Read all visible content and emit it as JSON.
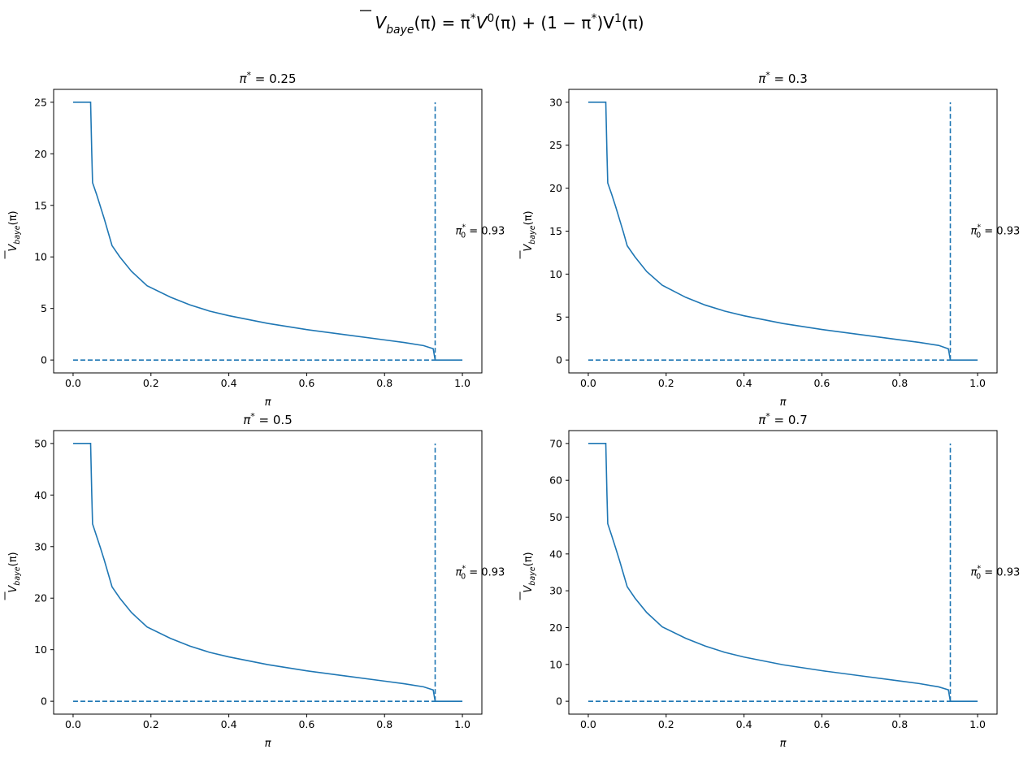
{
  "figure": {
    "suptitle": {
      "func": "V",
      "func_sub": "baye",
      "rest_1": "(π) = π",
      "sup_star_1": "*",
      "rest_2": "V",
      "sup_0": "0",
      "rest_3": "(π) + (1 − π",
      "sup_star_2": "*",
      "rest_4": ")V",
      "sup_1": "1",
      "rest_5": "(π)"
    },
    "ylabel": {
      "func": "V",
      "sub": "baye",
      "arg": "(π)"
    },
    "xlabel": "π",
    "annotation": {
      "sym": "π",
      "sub": "0",
      "sup": "*",
      "eq": " = ",
      "value": "0.93"
    }
  },
  "colors": {
    "line": "#1f77b4",
    "axes": "#000000",
    "background": "#ffffff"
  },
  "chart_data": [
    {
      "type": "line",
      "title": {
        "sym": "π",
        "sup": "*",
        "eq": " = 0.25"
      },
      "xlim": [
        -0.05,
        1.05
      ],
      "ylim": [
        -1.25,
        26.25
      ],
      "xticks": [
        0.0,
        0.2,
        0.4,
        0.6,
        0.8,
        1.0
      ],
      "xtick_labels": [
        "0.0",
        "0.2",
        "0.4",
        "0.6",
        "0.8",
        "1.0"
      ],
      "yticks": [
        0,
        5,
        10,
        15,
        20,
        25
      ],
      "ytick_labels": [
        "0",
        "5",
        "10",
        "15",
        "20",
        "25"
      ],
      "threshold_x": 0.93,
      "annotation_y": 12.5,
      "series": [
        {
          "style": "solid",
          "x": [
            0,
            0.045,
            0.048,
            0.05,
            0.06,
            0.07,
            0.08,
            0.09,
            0.1,
            0.12,
            0.15,
            0.19,
            0.25,
            0.3,
            0.35,
            0.4,
            0.5,
            0.6,
            0.7,
            0.8,
            0.85,
            0.9,
            0.925,
            0.93,
            1.0
          ],
          "y": [
            25,
            25,
            20,
            17.2,
            16.1,
            14.9,
            13.7,
            12.4,
            11.1,
            10.0,
            8.6,
            7.2,
            6.1,
            5.35,
            4.75,
            4.3,
            3.55,
            2.95,
            2.45,
            1.95,
            1.7,
            1.4,
            1.1,
            0,
            0
          ]
        },
        {
          "style": "dashed",
          "x": [
            0,
            0.93
          ],
          "y": [
            0,
            0
          ]
        },
        {
          "style": "dashed",
          "x": [
            0.93,
            0.93
          ],
          "y": [
            0,
            25
          ]
        }
      ]
    },
    {
      "type": "line",
      "title": {
        "sym": "π",
        "sup": "*",
        "eq": " = 0.3"
      },
      "xlim": [
        -0.05,
        1.05
      ],
      "ylim": [
        -1.5,
        31.5
      ],
      "xticks": [
        0.0,
        0.2,
        0.4,
        0.6,
        0.8,
        1.0
      ],
      "xtick_labels": [
        "0.0",
        "0.2",
        "0.4",
        "0.6",
        "0.8",
        "1.0"
      ],
      "yticks": [
        0,
        5,
        10,
        15,
        20,
        25,
        30
      ],
      "ytick_labels": [
        "0",
        "5",
        "10",
        "15",
        "20",
        "25",
        "30"
      ],
      "threshold_x": 0.93,
      "annotation_y": 15,
      "series": [
        {
          "style": "solid",
          "x": [
            0,
            0.045,
            0.048,
            0.05,
            0.06,
            0.07,
            0.08,
            0.09,
            0.1,
            0.12,
            0.15,
            0.19,
            0.25,
            0.3,
            0.35,
            0.4,
            0.5,
            0.6,
            0.7,
            0.8,
            0.85,
            0.9,
            0.925,
            0.93,
            1.0
          ],
          "y": [
            30,
            30,
            24,
            20.6,
            19.3,
            17.9,
            16.4,
            14.9,
            13.3,
            12.0,
            10.3,
            8.7,
            7.3,
            6.4,
            5.7,
            5.15,
            4.25,
            3.55,
            2.95,
            2.35,
            2.05,
            1.7,
            1.3,
            0,
            0
          ]
        },
        {
          "style": "dashed",
          "x": [
            0,
            0.93
          ],
          "y": [
            0,
            0
          ]
        },
        {
          "style": "dashed",
          "x": [
            0.93,
            0.93
          ],
          "y": [
            0,
            30
          ]
        }
      ]
    },
    {
      "type": "line",
      "title": {
        "sym": "π",
        "sup": "*",
        "eq": " = 0.5"
      },
      "xlim": [
        -0.05,
        1.05
      ],
      "ylim": [
        -2.5,
        52.5
      ],
      "xticks": [
        0.0,
        0.2,
        0.4,
        0.6,
        0.8,
        1.0
      ],
      "xtick_labels": [
        "0.0",
        "0.2",
        "0.4",
        "0.6",
        "0.8",
        "1.0"
      ],
      "yticks": [
        0,
        10,
        20,
        30,
        40,
        50
      ],
      "ytick_labels": [
        "0",
        "10",
        "20",
        "30",
        "40",
        "50"
      ],
      "threshold_x": 0.93,
      "annotation_y": 25,
      "series": [
        {
          "style": "solid",
          "x": [
            0,
            0.045,
            0.048,
            0.05,
            0.06,
            0.07,
            0.08,
            0.09,
            0.1,
            0.12,
            0.15,
            0.19,
            0.25,
            0.3,
            0.35,
            0.4,
            0.5,
            0.6,
            0.7,
            0.8,
            0.85,
            0.9,
            0.925,
            0.93,
            1.0
          ],
          "y": [
            50,
            50,
            40,
            34.4,
            32.1,
            29.8,
            27.4,
            24.8,
            22.2,
            20.0,
            17.2,
            14.4,
            12.2,
            10.7,
            9.5,
            8.6,
            7.1,
            5.9,
            4.9,
            3.9,
            3.4,
            2.8,
            2.2,
            0,
            0
          ]
        },
        {
          "style": "dashed",
          "x": [
            0,
            0.93
          ],
          "y": [
            0,
            0
          ]
        },
        {
          "style": "dashed",
          "x": [
            0.93,
            0.93
          ],
          "y": [
            0,
            50
          ]
        }
      ]
    },
    {
      "type": "line",
      "title": {
        "sym": "π",
        "sup": "*",
        "eq": " = 0.7"
      },
      "xlim": [
        -0.05,
        1.05
      ],
      "ylim": [
        -3.5,
        73.5
      ],
      "xticks": [
        0.0,
        0.2,
        0.4,
        0.6,
        0.8,
        1.0
      ],
      "xtick_labels": [
        "0.0",
        "0.2",
        "0.4",
        "0.6",
        "0.8",
        "1.0"
      ],
      "yticks": [
        0,
        10,
        20,
        30,
        40,
        50,
        60,
        70
      ],
      "ytick_labels": [
        "0",
        "10",
        "20",
        "30",
        "40",
        "50",
        "60",
        "70"
      ],
      "threshold_x": 0.93,
      "annotation_y": 35,
      "series": [
        {
          "style": "solid",
          "x": [
            0,
            0.045,
            0.048,
            0.05,
            0.06,
            0.07,
            0.08,
            0.09,
            0.1,
            0.12,
            0.15,
            0.19,
            0.25,
            0.3,
            0.35,
            0.4,
            0.5,
            0.6,
            0.7,
            0.8,
            0.85,
            0.9,
            0.925,
            0.93,
            1.0
          ],
          "y": [
            70,
            70,
            56,
            48.2,
            45.0,
            41.7,
            38.3,
            34.7,
            31.1,
            28.0,
            24.1,
            20.2,
            17.1,
            15.0,
            13.3,
            12.0,
            9.9,
            8.3,
            6.9,
            5.5,
            4.8,
            3.9,
            3.1,
            0,
            0
          ]
        },
        {
          "style": "dashed",
          "x": [
            0,
            0.93
          ],
          "y": [
            0,
            0
          ]
        },
        {
          "style": "dashed",
          "x": [
            0.93,
            0.93
          ],
          "y": [
            0,
            70
          ]
        }
      ]
    }
  ]
}
